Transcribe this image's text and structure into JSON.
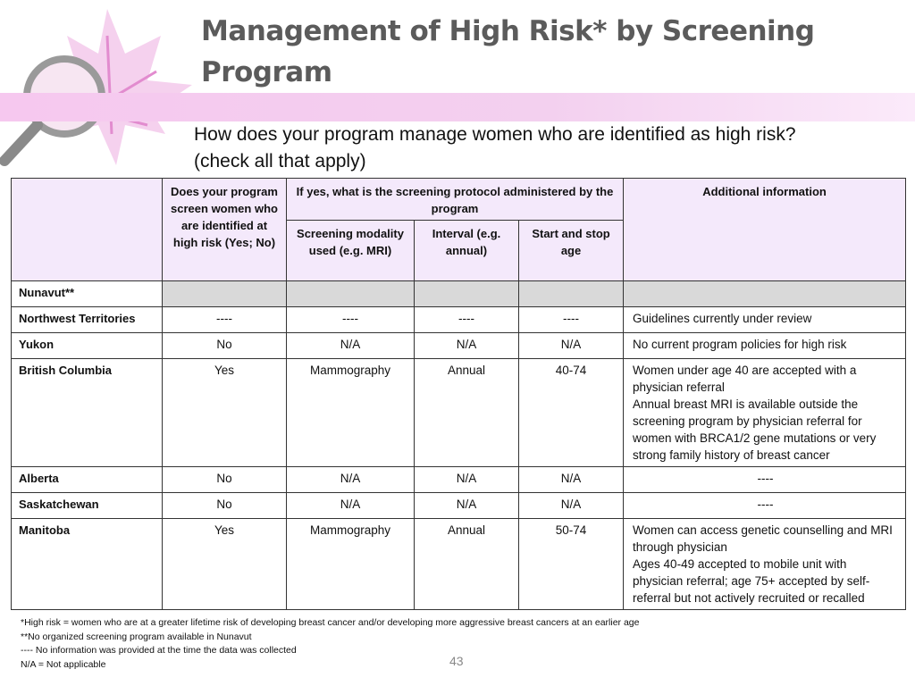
{
  "header": {
    "title_lines": [
      "Management of High Risk* by Screening",
      "Program"
    ],
    "subtitle_lines": [
      "How does your program manage women who are identified as high risk?",
      "(check all that apply)"
    ]
  },
  "table": {
    "columns": {
      "screen": "Does your program screen women who are identified at high risk (Yes; No)",
      "protocol": "If yes, what is the screening protocol administered by the program",
      "modality": "Screening modality used (e.g. MRI)",
      "interval": "Interval (e.g. annual)",
      "age": "Start and stop age",
      "info": "Additional information"
    },
    "rows": [
      {
        "label": "Nunavut**"
      },
      {
        "label": "Northwest Territories",
        "cells": [
          "----",
          "----",
          "----",
          "----"
        ],
        "info": [
          "Guidelines currently under review"
        ]
      },
      {
        "label": "Yukon",
        "cells": [
          "No",
          "N/A",
          "N/A",
          "N/A"
        ],
        "info": [
          "No current program policies for high risk"
        ]
      },
      {
        "label": "British Columbia",
        "cells": [
          "Yes",
          "Mammography",
          "Annual",
          "40-74"
        ],
        "info": [
          "Women under age 40 are accepted with a physician referral",
          "Annual breast MRI is available outside the screening program by physician referral for women with BRCA1/2 gene mutations or very strong family history of breast cancer"
        ]
      },
      {
        "label": "Alberta",
        "cells": [
          "No",
          "N/A",
          "N/A",
          "N/A"
        ],
        "info": [
          "----"
        ]
      },
      {
        "label": "Saskatchewan",
        "cells": [
          "No",
          "N/A",
          "N/A",
          "N/A"
        ],
        "info": [
          "----"
        ]
      },
      {
        "label": "Manitoba",
        "cells": [
          "Yes",
          "Mammography",
          "Annual",
          "50-74"
        ],
        "info": [
          "Women can access genetic counselling and MRI through physician",
          "Ages 40-49 accepted to mobile unit with physician referral; age 75+ accepted by self-referral but not actively recruited or recalled"
        ]
      }
    ]
  },
  "footnotes": [
    "*High risk = women who are at a greater lifetime risk of developing breast cancer and/or developing more aggressive breast cancers at an earlier age",
    "**No organized screening program available in Nunavut",
    "---- No information was provided at the time the data was collected",
    "N/A = Not applicable"
  ],
  "page_number": "43"
}
